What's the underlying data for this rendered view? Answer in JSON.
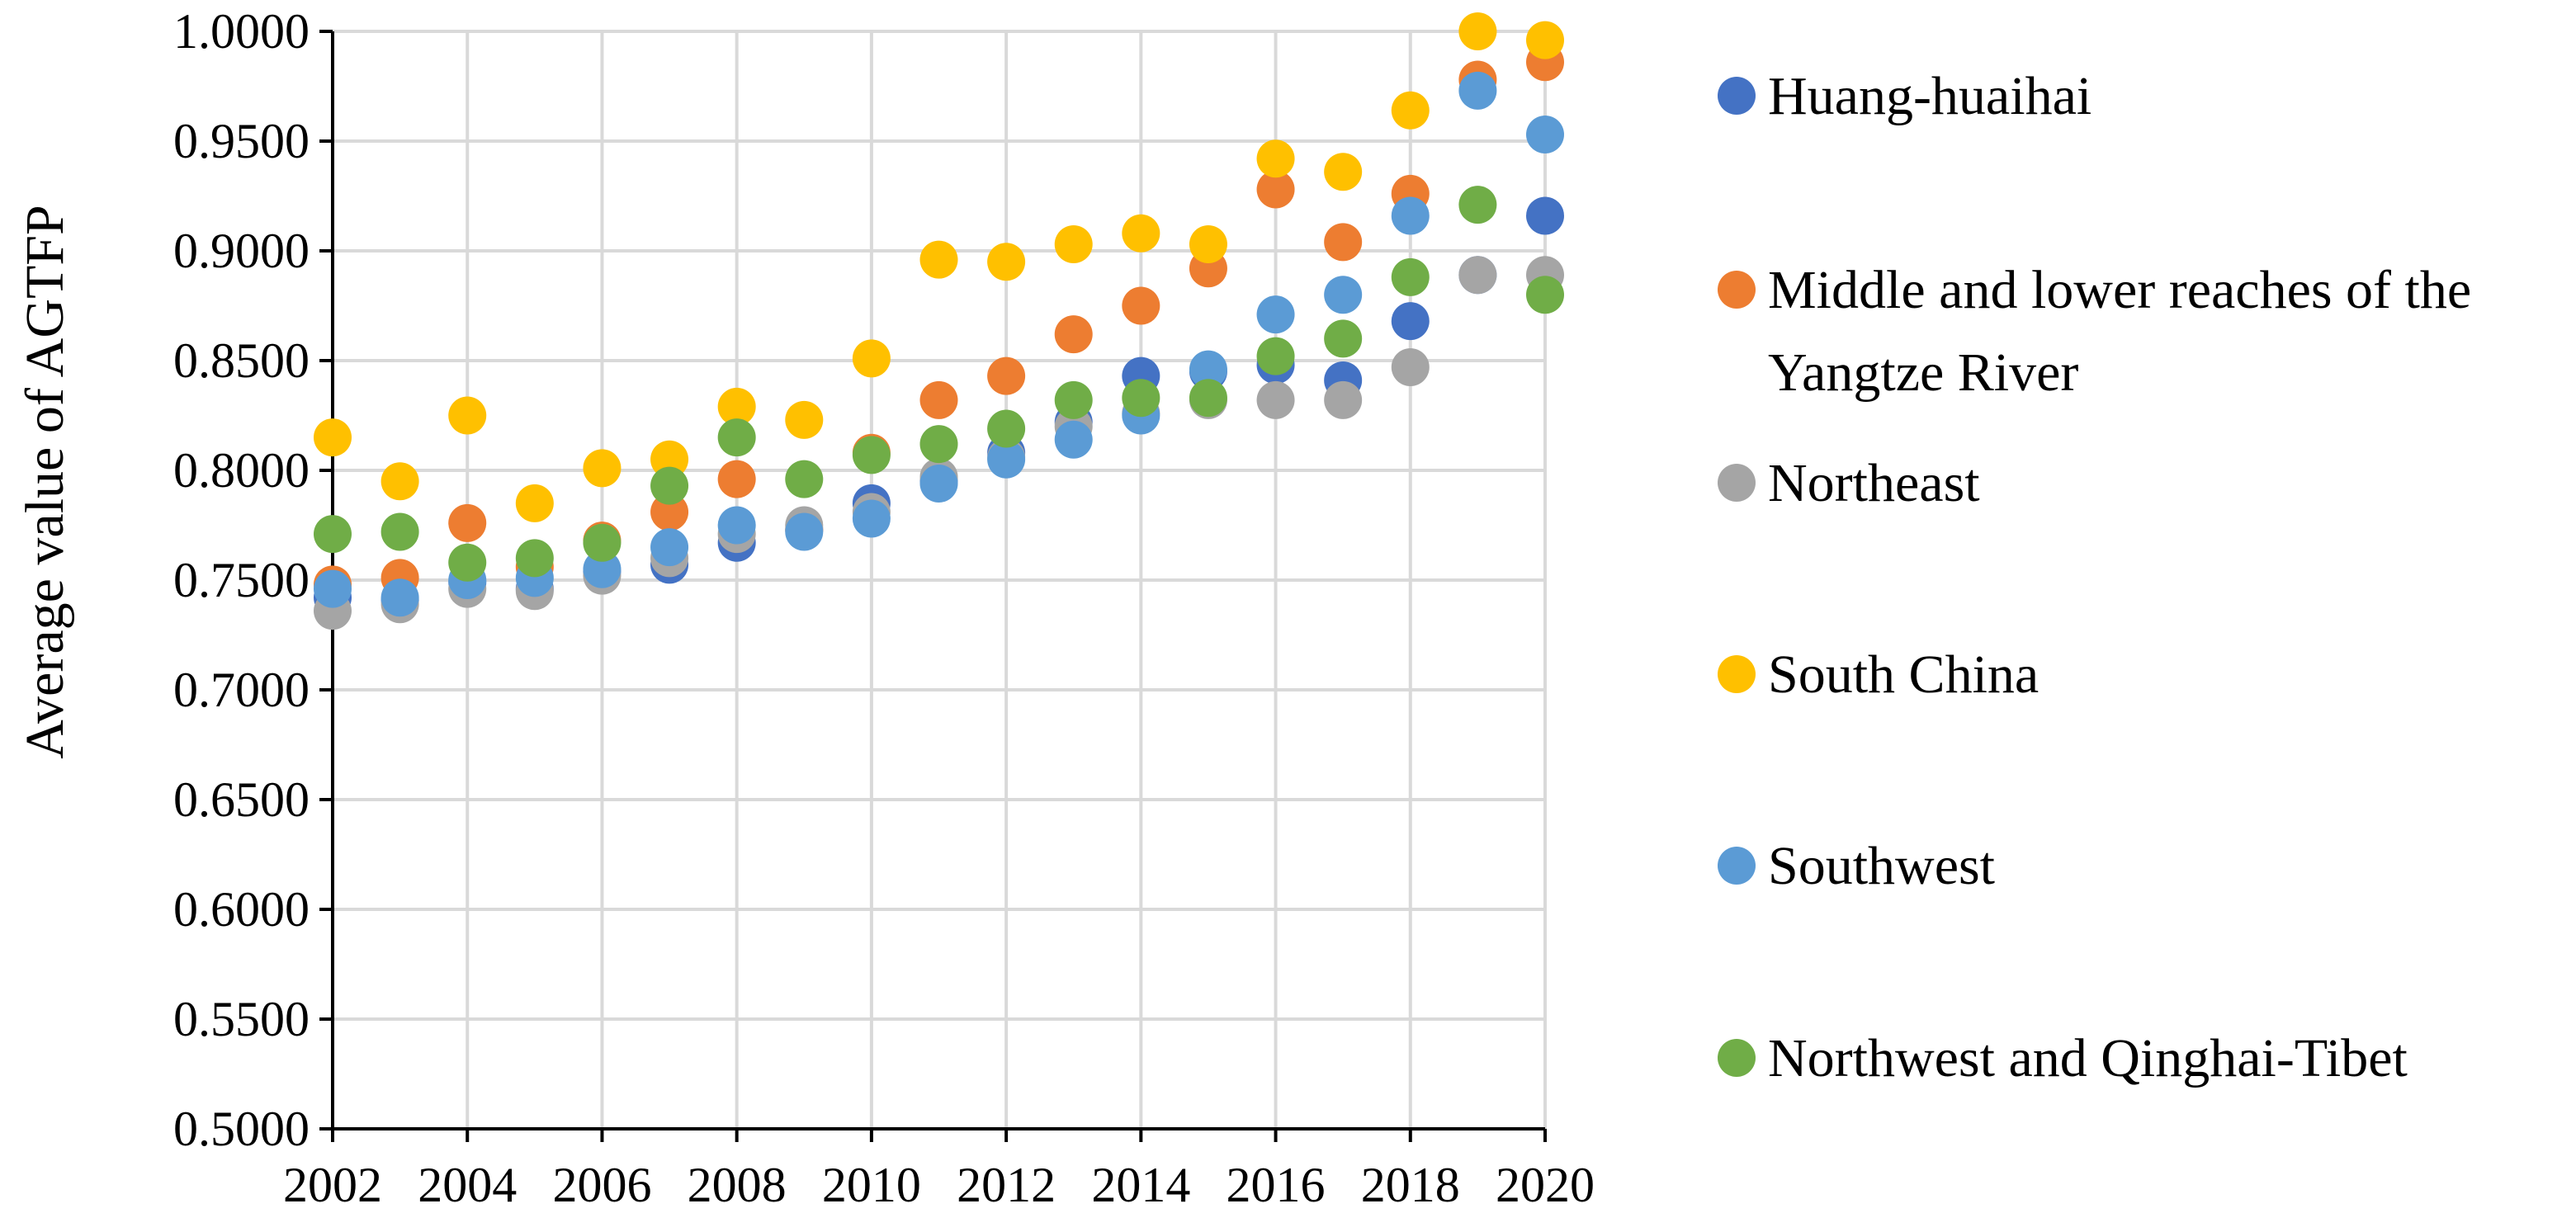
{
  "chart_data": {
    "type": "scatter",
    "title": "",
    "xlabel": "",
    "ylabel": "Average value of AGTFP",
    "x": [
      2002,
      2003,
      2004,
      2005,
      2006,
      2007,
      2008,
      2009,
      2010,
      2011,
      2012,
      2013,
      2014,
      2015,
      2016,
      2017,
      2018,
      2019,
      2020
    ],
    "xlim": [
      2002,
      2020
    ],
    "x_ticks": [
      "2002",
      "2004",
      "2006",
      "2008",
      "2010",
      "2012",
      "2014",
      "2016",
      "2018",
      "2020"
    ],
    "x_tick_values": [
      2002,
      2004,
      2006,
      2008,
      2010,
      2012,
      2014,
      2016,
      2018,
      2020
    ],
    "ylim": [
      0.5,
      1.0
    ],
    "y_ticks": [
      "0.5000",
      "0.5500",
      "0.6000",
      "0.6500",
      "0.7000",
      "0.7500",
      "0.8000",
      "0.8500",
      "0.9000",
      "0.9500",
      "1.0000"
    ],
    "y_tick_values": [
      0.5,
      0.55,
      0.6,
      0.65,
      0.7,
      0.75,
      0.8,
      0.85,
      0.9,
      0.95,
      1.0
    ],
    "grid": true,
    "legend_position": "right",
    "series": [
      {
        "name": "Huang-huaihai",
        "color": "#4472C4",
        "values": [
          0.742,
          0.741,
          0.749,
          0.746,
          0.754,
          0.757,
          0.767,
          0.773,
          0.785,
          0.795,
          0.808,
          0.822,
          0.843,
          0.845,
          0.848,
          0.841,
          0.868,
          0.889,
          0.916
        ]
      },
      {
        "name": "Middle and lower reaches of the Yangtze River",
        "color": "#ED7D31",
        "values": [
          0.748,
          0.751,
          0.776,
          0.756,
          0.768,
          0.781,
          0.796,
          0.773,
          0.808,
          0.832,
          0.843,
          0.862,
          0.875,
          0.892,
          0.928,
          0.904,
          0.926,
          0.978,
          0.986
        ]
      },
      {
        "name": "Northeast",
        "color": "#A5A5A5",
        "values": [
          0.736,
          0.739,
          0.746,
          0.745,
          0.752,
          0.76,
          0.771,
          0.775,
          0.781,
          0.797,
          0.806,
          0.82,
          0.826,
          0.832,
          0.832,
          0.832,
          0.847,
          0.889,
          0.889
        ]
      },
      {
        "name": "South China",
        "color": "#FFC000",
        "values": [
          0.815,
          0.795,
          0.825,
          0.785,
          0.801,
          0.805,
          0.829,
          0.823,
          0.851,
          0.896,
          0.895,
          0.903,
          0.908,
          0.903,
          0.942,
          0.936,
          0.964,
          1.0,
          0.996
        ]
      },
      {
        "name": "Southwest",
        "color": "#5B9BD5",
        "values": [
          0.746,
          0.742,
          0.75,
          0.751,
          0.755,
          0.765,
          0.775,
          0.772,
          0.778,
          0.794,
          0.805,
          0.814,
          0.825,
          0.846,
          0.871,
          0.88,
          0.916,
          0.973,
          0.953
        ]
      },
      {
        "name": "Northwest and Qinghai-Tibet",
        "color": "#70AD47",
        "values": [
          0.771,
          0.772,
          0.758,
          0.76,
          0.767,
          0.793,
          0.815,
          0.796,
          0.807,
          0.812,
          0.819,
          0.832,
          0.833,
          0.833,
          0.852,
          0.86,
          0.888,
          0.921,
          0.88
        ]
      }
    ]
  }
}
